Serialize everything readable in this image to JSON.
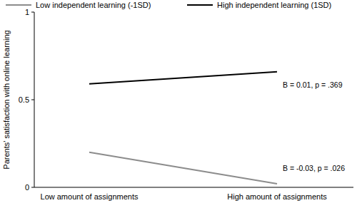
{
  "chart_data": {
    "type": "line",
    "y_label": "Parents' satisfaction with online learning",
    "categories": [
      "Low amount of assignments",
      "High amount of assignments"
    ],
    "series": [
      {
        "name": "Low independent learning (-1SD)",
        "color": "#8c8c8c",
        "values": [
          0.2,
          0.02
        ]
      },
      {
        "name": "High independent learning (1SD)",
        "color": "#000000",
        "values": [
          0.59,
          0.66
        ]
      }
    ],
    "annotations": [
      "B = -0.03, p = .026",
      "B = 0.01, p = .369"
    ],
    "ylim": [
      0,
      1
    ],
    "yticks": [
      0,
      0.5,
      1
    ],
    "grid": false,
    "legend": "top"
  }
}
